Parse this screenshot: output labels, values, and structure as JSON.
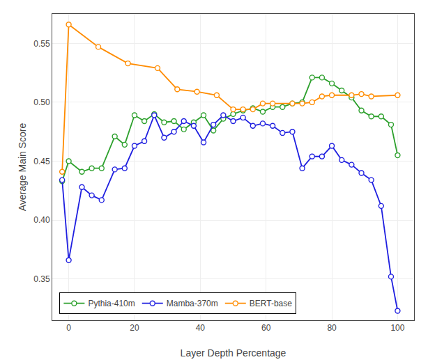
{
  "chart_data": {
    "type": "line",
    "xlabel": "Layer Depth Percentage",
    "ylabel": "Average Main Score",
    "xlim": [
      -5,
      105
    ],
    "ylim": [
      0.315,
      0.575
    ],
    "xticks": [
      0,
      20,
      40,
      60,
      80,
      100
    ],
    "yticks": [
      0.35,
      {
        "value": 0.4,
        "label": "0.40"
      },
      0.45,
      {
        "value": 0.5,
        "label": "0.50"
      },
      0.55
    ],
    "grid": true,
    "legend": "lower left",
    "marker": "circle",
    "series": [
      {
        "name": "Pythia-410m",
        "color": "#2ca02c",
        "x": [
          -2,
          0,
          4,
          7,
          10,
          14,
          17,
          20,
          23,
          26,
          29,
          32,
          35,
          38,
          41,
          44,
          47,
          50,
          53,
          56,
          59,
          62,
          65,
          68,
          71,
          74,
          77,
          80,
          83,
          86,
          89,
          92,
          95,
          98,
          100
        ],
        "values": [
          0.433,
          0.45,
          0.441,
          0.444,
          0.444,
          0.471,
          0.464,
          0.489,
          0.484,
          0.49,
          0.483,
          0.484,
          0.477,
          0.483,
          0.489,
          0.476,
          0.486,
          0.49,
          0.493,
          0.495,
          0.492,
          0.496,
          0.496,
          0.499,
          0.5,
          0.521,
          0.521,
          0.516,
          0.51,
          0.504,
          0.493,
          0.488,
          0.488,
          0.481,
          0.455
        ]
      },
      {
        "name": "Mamba-370m",
        "color": "#1f1fe0",
        "x": [
          -2,
          0,
          4,
          7,
          10,
          14,
          17,
          20,
          23,
          26,
          29,
          32,
          35,
          38,
          41,
          44,
          47,
          50,
          53,
          56,
          59,
          62,
          65,
          68,
          71,
          74,
          77,
          80,
          83,
          86,
          89,
          92,
          95,
          98,
          100
        ],
        "values": [
          0.434,
          0.366,
          0.428,
          0.421,
          0.417,
          0.443,
          0.444,
          0.463,
          0.467,
          0.489,
          0.47,
          0.475,
          0.484,
          0.48,
          0.466,
          0.481,
          0.489,
          0.484,
          0.487,
          0.48,
          0.482,
          0.48,
          0.474,
          0.475,
          0.444,
          0.454,
          0.454,
          0.463,
          0.451,
          0.447,
          0.44,
          0.434,
          0.412,
          0.352,
          0.323
        ]
      },
      {
        "name": "BERT-base",
        "color": "#ff8c00",
        "x": [
          -2,
          0,
          9,
          18,
          27,
          33,
          39,
          45,
          50,
          53,
          56,
          59,
          62,
          68,
          71,
          74,
          77,
          80,
          86,
          89,
          92,
          100
        ],
        "values": [
          0.441,
          0.566,
          0.547,
          0.533,
          0.529,
          0.511,
          0.509,
          0.506,
          0.494,
          0.494,
          0.494,
          0.499,
          0.499,
          0.499,
          0.499,
          0.5,
          0.505,
          0.506,
          0.506,
          0.507,
          0.505,
          0.506
        ]
      }
    ]
  }
}
